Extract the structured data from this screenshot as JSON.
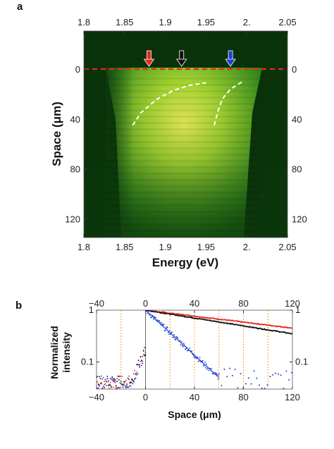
{
  "panel_a": {
    "label": "a",
    "xlabel": "Energy (eV)",
    "ylabel": "Space (μm)",
    "x_ticks": [
      "1.8",
      "1.85",
      "1.9",
      "1.95",
      "2.",
      "2.05"
    ],
    "y_ticks": [
      "0",
      "40",
      "80",
      "120"
    ]
  },
  "panel_b": {
    "label": "b",
    "xlabel": "Space (μm)",
    "ylabel_line1": "Normalized",
    "ylabel_line2": "intensity",
    "x_ticks": [
      "−40",
      "0",
      "40",
      "80",
      "120"
    ],
    "y_ticks": [
      "1",
      "0.1"
    ]
  },
  "colors": {
    "red": "#e8261e",
    "black": "#111111",
    "blue": "#1d3fd6",
    "orange_dash": "#f0a030",
    "green_bg": "#0c3a0c",
    "white_dash": "#ffffff"
  },
  "chart_data": [
    {
      "type": "heatmap",
      "x_range": [
        1.8,
        2.05
      ],
      "y_range": [
        0,
        135
      ],
      "y_inverted": true,
      "arrows": [
        {
          "color": "red",
          "energy": 1.88
        },
        {
          "color": "black",
          "energy": 1.92
        },
        {
          "color": "blue",
          "energy": 1.98
        }
      ],
      "red_dashed_line_space": 0,
      "white_dashed_curves": [
        {
          "x": [
            1.86,
            1.87,
            1.89,
            1.91,
            1.93,
            1.95
          ],
          "y": [
            45,
            35,
            24,
            17,
            13,
            11
          ]
        },
        {
          "x": [
            1.96,
            1.965,
            1.97,
            1.98,
            1.99,
            1.995
          ],
          "y": [
            45,
            33,
            24,
            16,
            12,
            10
          ]
        }
      ]
    },
    {
      "type": "scatter",
      "x_range": [
        -40,
        120
      ],
      "y_range": [
        0.03,
        1
      ],
      "y_scale": "log",
      "vertical_lines_x": [
        -20,
        20,
        40,
        60,
        80,
        100
      ],
      "series": [
        {
          "color": "red",
          "fit": {
            "x": [
              0,
              120
            ],
            "y": [
              1,
              0.45
            ]
          },
          "spread": 0.05
        },
        {
          "color": "black",
          "fit": {
            "x": [
              0,
              120
            ],
            "y": [
              1,
              0.35
            ]
          },
          "spread": 0.05
        },
        {
          "color": "blue",
          "fit": {
            "x": [
              0,
              60
            ],
            "y": [
              1,
              0.05
            ]
          },
          "spread": 0.25,
          "tail": {
            "x": [
              60,
              120
            ],
            "y": 0.045
          }
        }
      ]
    }
  ]
}
